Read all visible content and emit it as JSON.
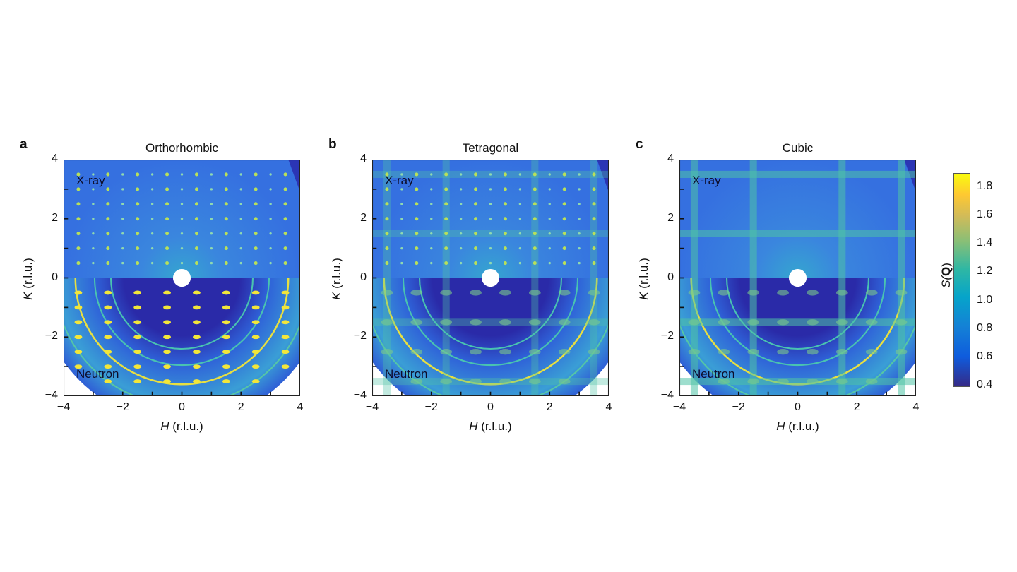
{
  "chart_data": [
    {
      "type": "heatmap",
      "letter": "a",
      "title": "Orthorhombic",
      "pattern": "sharp-spots",
      "xlabel_var": "H",
      "xlabel_unit": " (r.l.u.)",
      "ylabel_var": "K",
      "ylabel_unit": " (r.l.u.)",
      "xlim": [
        -4,
        4
      ],
      "ylim": [
        -4,
        4
      ],
      "xticks": [
        "−4",
        "−2",
        "0",
        "2",
        "4"
      ],
      "yticks": [
        "4",
        "2",
        "0",
        "−2",
        "−4"
      ],
      "upper_label": "X-ray",
      "lower_label": "Neutron"
    },
    {
      "type": "heatmap",
      "letter": "b",
      "title": "Tetragonal",
      "pattern": "spots-with-diffuse-rods",
      "xlabel_var": "H",
      "xlabel_unit": " (r.l.u.)",
      "ylabel_var": "K",
      "ylabel_unit": " (r.l.u.)",
      "xlim": [
        -4,
        4
      ],
      "ylim": [
        -4,
        4
      ],
      "xticks": [
        "−4",
        "−2",
        "0",
        "2",
        "4"
      ],
      "yticks": [
        "4",
        "2",
        "0",
        "−2",
        "−4"
      ],
      "upper_label": "X-ray",
      "lower_label": "Neutron"
    },
    {
      "type": "heatmap",
      "letter": "c",
      "title": "Cubic",
      "pattern": "diffuse-rods",
      "xlabel_var": "H",
      "xlabel_unit": " (r.l.u.)",
      "ylabel_var": "K",
      "ylabel_unit": " (r.l.u.)",
      "xlim": [
        -4,
        4
      ],
      "ylim": [
        -4,
        4
      ],
      "xticks": [
        "−4",
        "−2",
        "0",
        "2",
        "4"
      ],
      "yticks": [
        "4",
        "2",
        "0",
        "−2",
        "−4"
      ],
      "upper_label": "X-ray",
      "lower_label": "Neutron"
    }
  ],
  "colorbar": {
    "label_prefix": "S(",
    "label_bold": "Q",
    "label_suffix": ")",
    "range": [
      0.4,
      1.9
    ],
    "ticks": [
      "1.8",
      "1.6",
      "1.4",
      "1.2",
      "1.0",
      "0.8",
      "0.6",
      "0.4"
    ],
    "colormap": "parula"
  },
  "colors": {
    "xray_bg": "#3570e0",
    "neutron_edge": "#3a9ed6",
    "neutron_core": "#2a2aa8",
    "peak": "#f2e63a",
    "wedge": "#2b35b5"
  }
}
